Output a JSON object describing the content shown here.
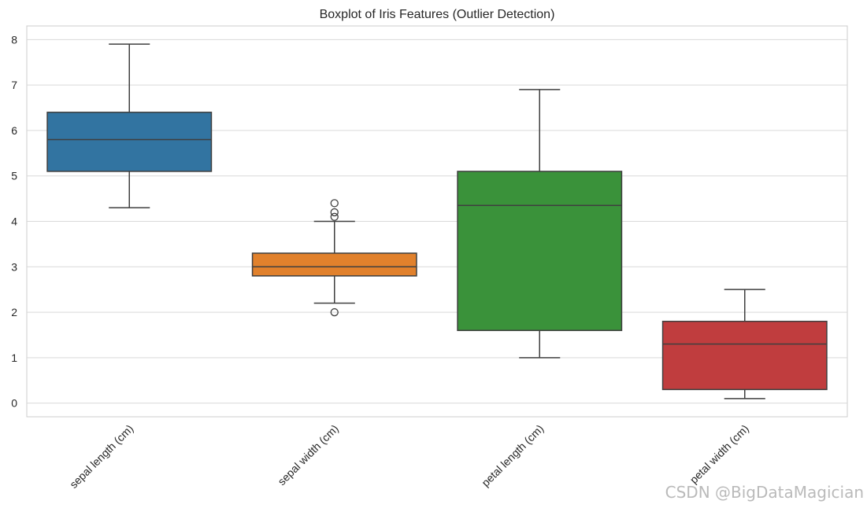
{
  "chart_data": {
    "type": "box",
    "title": "Boxplot of Iris Features (Outlier Detection)",
    "xlabel": "",
    "ylabel": "",
    "ylim": [
      -0.3,
      8.3
    ],
    "yticks": [
      0,
      1,
      2,
      3,
      4,
      5,
      6,
      7,
      8
    ],
    "grid": true,
    "categories": [
      "sepal length (cm)",
      "sepal width (cm)",
      "petal length (cm)",
      "petal width (cm)"
    ],
    "boxes": [
      {
        "label": "sepal length (cm)",
        "whisker_low": 4.3,
        "q1": 5.1,
        "median": 5.8,
        "q3": 6.4,
        "whisker_high": 7.9,
        "outliers": [],
        "color": "#3274a1"
      },
      {
        "label": "sepal width (cm)",
        "whisker_low": 2.2,
        "q1": 2.8,
        "median": 3.0,
        "q3": 3.3,
        "whisker_high": 4.0,
        "outliers": [
          4.4,
          4.2,
          4.1,
          2.0
        ],
        "color": "#e1812c"
      },
      {
        "label": "petal length (cm)",
        "whisker_low": 1.0,
        "q1": 1.6,
        "median": 4.35,
        "q3": 5.1,
        "whisker_high": 6.9,
        "outliers": [],
        "color": "#3a923a"
      },
      {
        "label": "petal width (cm)",
        "whisker_low": 0.1,
        "q1": 0.3,
        "median": 1.3,
        "q3": 1.8,
        "whisker_high": 2.5,
        "outliers": [],
        "color": "#c03d3e"
      }
    ]
  },
  "watermark": "CSDN @BigDataMagician"
}
